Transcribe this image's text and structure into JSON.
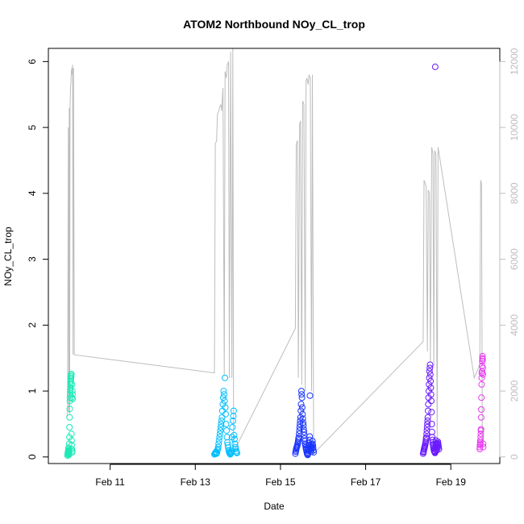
{
  "chart_data": {
    "type": "scatter",
    "title": "ATOM2 Northbound NOy_CL_trop",
    "xlabel": "Date",
    "ylabel": "NOy_CL_trop",
    "x_ticks": [
      "Feb 11",
      "Feb 13",
      "Feb 15",
      "Feb 17",
      "Feb 19"
    ],
    "x_tick_days": [
      11,
      13,
      15,
      17,
      19
    ],
    "xlim": [
      9.55,
      20.15
    ],
    "ylim": [
      -0.1,
      6.2
    ],
    "y_ticks": [
      0,
      1,
      2,
      3,
      4,
      5,
      6
    ],
    "y2_label": "",
    "y2lim": [
      -200,
      12400
    ],
    "y2_ticks": [
      0,
      2000,
      4000,
      6000,
      8000,
      10000,
      12000
    ],
    "y2_color": "#bdbdbd",
    "grid": false,
    "legend": "none",
    "series": [
      {
        "color": "#1de9b6",
        "x_range": [
          10.0,
          10.12
        ],
        "y": [
          0.02,
          0.04,
          0.05,
          0.06,
          0.07,
          0.08,
          0.09,
          0.1,
          0.12,
          0.14,
          0.05,
          0.03,
          0.06,
          0.08,
          0.1,
          0.2,
          0.3,
          0.45,
          0.6,
          0.73,
          0.85,
          0.9,
          0.95,
          1.0,
          1.02,
          1.05,
          1.1,
          1.12,
          1.15,
          1.18,
          1.2,
          1.22,
          1.24,
          1.26,
          0.35,
          0.25,
          0.18,
          0.12,
          0.9,
          1.1,
          0.07,
          0.09,
          1.0,
          0.95,
          0.88
        ]
      },
      {
        "color": "#00bfff",
        "x_range": [
          13.45,
          13.98
        ],
        "y": [
          0.04,
          0.05,
          0.06,
          0.07,
          0.08,
          0.05,
          0.06,
          0.1,
          0.12,
          0.15,
          0.2,
          0.25,
          0.3,
          0.35,
          0.4,
          0.45,
          0.5,
          0.55,
          0.6,
          0.7,
          0.8,
          0.9,
          1.0,
          0.95,
          0.85,
          1.2,
          0.75,
          0.65,
          0.5,
          0.4,
          0.3,
          0.22,
          0.18,
          0.14,
          0.1,
          0.08,
          0.06,
          0.05,
          0.04,
          0.06,
          0.07,
          0.09,
          0.3,
          0.45,
          0.55,
          0.62,
          0.7,
          0.33,
          0.27,
          0.2,
          0.15,
          0.12,
          0.09,
          0.07,
          0.06
        ]
      },
      {
        "color": "#1a35ff",
        "x_range": [
          15.35,
          15.78
        ],
        "y": [
          0.05,
          0.08,
          0.1,
          0.12,
          0.14,
          0.15,
          0.16,
          0.18,
          0.2,
          0.22,
          0.25,
          0.28,
          0.3,
          0.35,
          0.4,
          0.45,
          0.5,
          0.55,
          0.6,
          0.7,
          0.8,
          1.0,
          0.95,
          0.9,
          0.75,
          0.65,
          0.58,
          0.52,
          0.48,
          0.42,
          0.38,
          0.33,
          0.28,
          0.24,
          0.2,
          0.18,
          0.15,
          0.13,
          0.11,
          0.09,
          0.07,
          0.05,
          0.04,
          0.03,
          0.06,
          0.1,
          0.14,
          0.17,
          0.21,
          0.26,
          0.31,
          0.93,
          0.12,
          0.16,
          0.19,
          0.08,
          0.11,
          0.13,
          0.15,
          0.2,
          0.24,
          0.18,
          0.14,
          0.1,
          0.07
        ]
      },
      {
        "color": "#6a1aff",
        "x_range": [
          18.35,
          18.72
        ],
        "y": [
          0.05,
          0.07,
          0.08,
          0.1,
          0.12,
          0.13,
          0.15,
          0.16,
          0.18,
          0.2,
          0.22,
          0.25,
          0.28,
          0.3,
          0.35,
          0.4,
          0.45,
          0.5,
          0.55,
          0.6,
          0.7,
          0.8,
          0.9,
          1.0,
          1.1,
          1.2,
          1.3,
          1.35,
          1.4,
          1.25,
          1.15,
          1.05,
          0.95,
          0.85,
          0.68,
          0.5,
          0.38,
          0.3,
          0.26,
          0.22,
          0.19,
          0.17,
          0.14,
          0.12,
          0.1,
          0.09,
          0.08,
          0.07,
          0.06,
          5.92,
          0.15,
          0.2,
          0.25,
          0.18,
          0.12,
          0.1,
          0.14,
          0.16,
          0.19,
          0.21,
          0.23,
          0.2,
          0.17,
          0.15,
          0.12
        ]
      },
      {
        "color": "#e83cf0",
        "x_range": [
          19.68,
          19.76
        ],
        "y": [
          0.12,
          0.15,
          0.18,
          0.2,
          0.22,
          0.25,
          0.3,
          0.35,
          0.4,
          0.42,
          0.6,
          0.72,
          0.9,
          1.1,
          1.2,
          1.27,
          1.3,
          1.38,
          1.45,
          1.5,
          1.53,
          1.48,
          1.35,
          1.25,
          0.2,
          0.15
        ]
      }
    ],
    "secondary_line": {
      "color": "#bdbdbd",
      "x": [
        9.98,
        10.0,
        10.02,
        10.03,
        10.04,
        10.05,
        10.06,
        10.07,
        10.08,
        10.09,
        10.1,
        10.11,
        10.12,
        10.13,
        10.14,
        10.16,
        13.45,
        13.47,
        13.5,
        13.52,
        13.55,
        13.57,
        13.6,
        13.62,
        13.65,
        13.68,
        13.7,
        13.73,
        13.75,
        13.78,
        13.8,
        13.83,
        13.86,
        13.88,
        13.9,
        15.35,
        15.37,
        15.4,
        15.42,
        15.45,
        15.47,
        15.5,
        15.52,
        15.55,
        15.58,
        15.6,
        15.62,
        15.65,
        15.67,
        15.7,
        15.73,
        15.75,
        15.78,
        18.35,
        18.37,
        18.4,
        18.42,
        18.45,
        18.47,
        18.5,
        18.52,
        18.55,
        18.58,
        18.6,
        18.62,
        18.65,
        18.68,
        18.7,
        19.55,
        19.68,
        19.7,
        19.72,
        19.74
      ],
      "y": [
        1200,
        1350,
        10000,
        1350,
        10600,
        1300,
        10600,
        11200,
        11400,
        11700,
        11800,
        11600,
        11900,
        3100,
        11800,
        3100,
        2550,
        9500,
        9600,
        10400,
        10500,
        10600,
        10700,
        10500,
        11200,
        2500,
        11700,
        11500,
        11900,
        12000,
        2400,
        12300,
        2400,
        12400,
        150,
        3900,
        9500,
        9600,
        2400,
        10100,
        10200,
        2200,
        10800,
        10700,
        2000,
        11400,
        11500,
        11300,
        11600,
        11500,
        2000,
        11600,
        100,
        3500,
        8400,
        8300,
        8200,
        3200,
        8100,
        8000,
        2900,
        9400,
        9200,
        2700,
        9300,
        9200,
        300,
        9400,
        2400,
        2800,
        8400,
        8300,
        400
      ]
    }
  }
}
